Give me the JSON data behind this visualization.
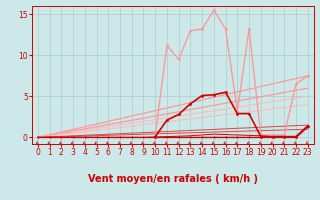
{
  "background_color": "#cce8e8",
  "grid_color": "#aacccc",
  "xlabel": "Vent moyen/en rafales ( km/h )",
  "xlabel_color": "#cc0000",
  "xlabel_fontsize": 7,
  "xlim": [
    -0.5,
    23.5
  ],
  "ylim": [
    -0.8,
    16.0
  ],
  "yticks": [
    0,
    5,
    10,
    15
  ],
  "xticks": [
    0,
    1,
    2,
    3,
    4,
    5,
    6,
    7,
    8,
    9,
    10,
    11,
    12,
    13,
    14,
    15,
    16,
    17,
    18,
    19,
    20,
    21,
    22,
    23
  ],
  "tick_fontsize": 5.5,
  "tick_color": "#cc0000",
  "diag_lines": [
    {
      "x": [
        0,
        23
      ],
      "y": [
        0,
        7.5
      ],
      "color": "#ff9999",
      "lw": 0.9
    },
    {
      "x": [
        0,
        23
      ],
      "y": [
        0,
        6.0
      ],
      "color": "#ff9999",
      "lw": 0.9
    },
    {
      "x": [
        0,
        23
      ],
      "y": [
        0,
        5.0
      ],
      "color": "#ffbbbb",
      "lw": 0.8
    },
    {
      "x": [
        0,
        23
      ],
      "y": [
        0,
        4.0
      ],
      "color": "#ffbbbb",
      "lw": 0.8
    },
    {
      "x": [
        0,
        23
      ],
      "y": [
        0,
        1.5
      ],
      "color": "#dd4444",
      "lw": 0.7
    },
    {
      "x": [
        0,
        23
      ],
      "y": [
        0,
        1.0
      ],
      "color": "#dd4444",
      "lw": 0.7
    }
  ],
  "line_pink_x": [
    10,
    11,
    12,
    13,
    14,
    15,
    16,
    17,
    18,
    19,
    20,
    21,
    22,
    23
  ],
  "line_pink_y": [
    0.2,
    11.2,
    9.5,
    13.0,
    13.2,
    15.5,
    13.2,
    3.2,
    13.2,
    0.3,
    0.3,
    0.3,
    6.5,
    7.5
  ],
  "line_pink_color": "#ff9999",
  "line_pink_lw": 1.0,
  "line_pink_ms": 2.0,
  "line_dkred_x": [
    10,
    11,
    12,
    13,
    14,
    15,
    16,
    17,
    18,
    19,
    20,
    21,
    22,
    23
  ],
  "line_dkred_y": [
    0.1,
    2.1,
    2.8,
    4.1,
    5.1,
    5.2,
    5.5,
    2.9,
    2.9,
    0.1,
    0.1,
    0.1,
    0.1,
    1.4
  ],
  "line_dkred_color": "#cc0000",
  "line_dkred_lw": 1.2,
  "line_dkred_ms": 2.0,
  "line_flat1_x": [
    0,
    1,
    2,
    3,
    4,
    5,
    6,
    7,
    8,
    9,
    10,
    11,
    12,
    13,
    14,
    15,
    16,
    17,
    18,
    19,
    20,
    21,
    22,
    23
  ],
  "line_flat1_y": [
    0,
    0,
    0,
    0,
    0,
    0,
    0,
    0,
    0,
    0,
    0,
    0,
    0,
    0,
    0,
    0,
    0,
    0,
    0,
    0,
    0,
    0,
    0,
    1.3
  ],
  "line_flat1_color": "#cc0000",
  "line_flat1_lw": 1.0,
  "line_flat1_ms": 1.5,
  "line_flat2_x": [
    0,
    1,
    2,
    3,
    4,
    5,
    6,
    7,
    8,
    9,
    10,
    11,
    12,
    13,
    14,
    15,
    16,
    17,
    18,
    19,
    20,
    21,
    22,
    23
  ],
  "line_flat2_y": [
    0,
    0,
    0,
    0,
    0,
    0,
    0,
    0,
    0,
    0,
    0.05,
    0.1,
    0.15,
    0.2,
    0.3,
    0.4,
    0.35,
    0.3,
    0.25,
    0.2,
    0.1,
    0.05,
    0,
    1.3
  ],
  "line_flat2_color": "#cc0000",
  "line_flat2_lw": 0.7,
  "arrow_color": "#cc0000",
  "spine_color": "#cc0000"
}
